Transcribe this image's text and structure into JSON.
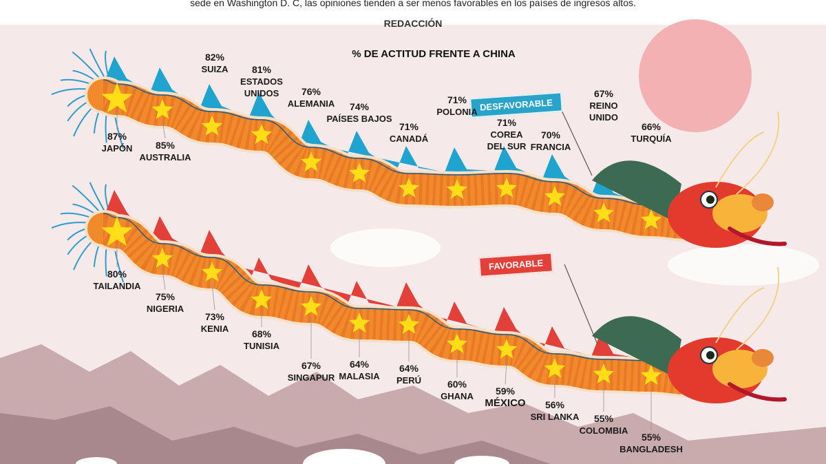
{
  "header": {
    "intro_text": "sede en Washington D. C, las opiniones tienden a ser menos favorables en los países de ingresos altos.",
    "byline": "REDACCIÓN"
  },
  "colors": {
    "background": "#f6e9ea",
    "sun": "#f3b1b4",
    "mountains": "#b08e92",
    "unfavorable_fin": "#1fa3cf",
    "favorable_fin": "#e3403a",
    "dragon_body": "#f08a2a",
    "dragon_scale": "#e56b25",
    "star": "#ffde17",
    "dragon_head_green": "#3c6b52",
    "dragon_head_red": "#e23b2e"
  },
  "chart_data": [
    {
      "type": "bar",
      "title": "% DE ACTITUD FRENTE A CHINA",
      "series": [
        {
          "name": "DESFAVORABLE",
          "unit": "%",
          "categories": [
            "JAPÓN",
            "AUSTRALIA",
            "SUIZA",
            "ESTADOS UNIDOS",
            "ALEMANIA",
            "PAÍSES BAJOS",
            "CANADÁ",
            "POLONIA",
            "COREA DEL SUR",
            "FRANCIA",
            "REINO UNIDO",
            "TURQUÍA"
          ],
          "values": [
            87,
            85,
            82,
            81,
            76,
            74,
            71,
            71,
            71,
            70,
            67,
            66
          ],
          "labels": [
            {
              "pct": "87%",
              "name": "JAPÓN"
            },
            {
              "pct": "85%",
              "name": "AUSTRALIA"
            },
            {
              "pct": "82%",
              "name": "SUIZA"
            },
            {
              "pct": "81%",
              "name": "ESTADOS\nUNIDOS"
            },
            {
              "pct": "76%",
              "name": "ALEMANIA"
            },
            {
              "pct": "74%",
              "name": "PAÍSES BAJOS"
            },
            {
              "pct": "71%",
              "name": "CANADÁ"
            },
            {
              "pct": "71%",
              "name": "POLONIA"
            },
            {
              "pct": "71%",
              "name": "COREA\nDEL SUR"
            },
            {
              "pct": "70%",
              "name": "FRANCIA"
            },
            {
              "pct": "67%",
              "name": "REINO\nUNIDO"
            },
            {
              "pct": "66%",
              "name": "TURQUÍA"
            }
          ]
        },
        {
          "name": "FAVORABLE",
          "unit": "%",
          "categories": [
            "TAILANDIA",
            "NIGERIA",
            "KENIA",
            "TUNISIA",
            "SINGAPUR",
            "MALASIA",
            "PERÚ",
            "GHANA",
            "MÉXICO",
            "SRI LANKA",
            "COLOMBIA",
            "BANGLADESH"
          ],
          "values": [
            80,
            75,
            73,
            68,
            67,
            64,
            64,
            60,
            59,
            56,
            55,
            55
          ],
          "labels": [
            {
              "pct": "80%",
              "name": "TAILANDIA"
            },
            {
              "pct": "75%",
              "name": "NIGERIA"
            },
            {
              "pct": "73%",
              "name": "KENIA"
            },
            {
              "pct": "68%",
              "name": "TUNISIA"
            },
            {
              "pct": "67%",
              "name": "SINGAPUR"
            },
            {
              "pct": "64%",
              "name": "MALASIA"
            },
            {
              "pct": "64%",
              "name": "PERÚ"
            },
            {
              "pct": "60%",
              "name": "GHANA"
            },
            {
              "pct": "59%",
              "name": "MÉXICO"
            },
            {
              "pct": "56%",
              "name": "SRI LANKA"
            },
            {
              "pct": "55%",
              "name": "COLOMBIA"
            },
            {
              "pct": "55%",
              "name": "BANGLADESH"
            }
          ]
        }
      ]
    }
  ]
}
